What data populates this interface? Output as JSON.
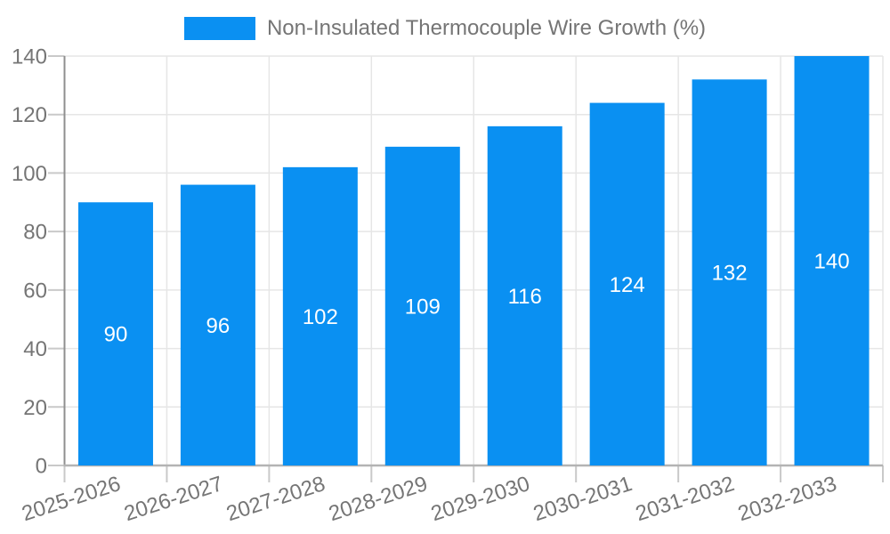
{
  "chart_data": {
    "type": "bar",
    "title": "Non-Insulated Thermocouple Wire Growth (%)",
    "legend_entries": [
      "Non-Insulated Thermocouple Wire Growth (%)"
    ],
    "legend_position": "top-center",
    "categories": [
      "2025-2026",
      "2026-2027",
      "2027-2028",
      "2028-2029",
      "2029-2030",
      "2030-2031",
      "2031-2032",
      "2032-2033"
    ],
    "values": [
      90,
      96,
      102,
      109,
      116,
      124,
      132,
      140
    ],
    "value_labels": [
      "90",
      "96",
      "102",
      "109",
      "116",
      "124",
      "132",
      "140"
    ],
    "xlabel": "",
    "ylabel": "",
    "ylim": [
      0,
      140
    ],
    "ytick_step": 20,
    "yticks": [
      0,
      20,
      40,
      60,
      80,
      100,
      120,
      140
    ],
    "grid": true,
    "x_label_rotation_deg": -18,
    "bar_color": "#0a90f2",
    "value_label_color": "#ffffff",
    "axis_text_color": "#757575",
    "gridline_color": "#e6e6e6",
    "y_axis_color": "#8f8f8f",
    "x_axis_color": "#b3b3b3",
    "tick_color": "#c9c9c9"
  }
}
